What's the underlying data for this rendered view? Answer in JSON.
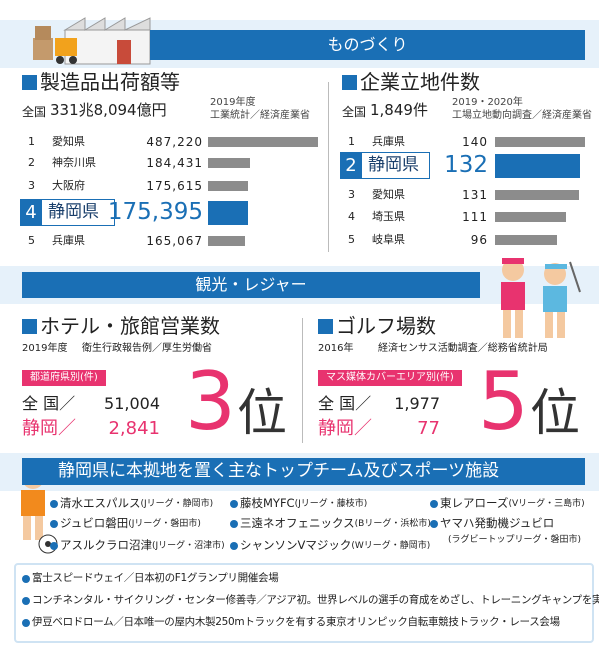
{
  "manufacturing": {
    "banner": "ものづくり",
    "shipments": {
      "title": "製造品出荷額等",
      "national_label": "全国",
      "national_value": "331兆8,094億円",
      "source_year": "2019年度",
      "source": "工業統計／経済産業省",
      "highlight": 3,
      "rows": [
        {
          "rank": "1",
          "pref": "愛知県",
          "value": "487,220"
        },
        {
          "rank": "2",
          "pref": "神奈川県",
          "value": "184,431"
        },
        {
          "rank": "3",
          "pref": "大阪府",
          "value": "175,615"
        },
        {
          "rank": "4",
          "pref": "静岡県",
          "value": "175,395"
        },
        {
          "rank": "5",
          "pref": "兵庫県",
          "value": "165,067"
        }
      ]
    },
    "sites": {
      "title": "企業立地件数",
      "national_label": "全国",
      "national_value": "1,849件",
      "source_year": "2019・2020年",
      "source": "工場立地動向調査／経済産業省",
      "highlight": 1,
      "rows": [
        {
          "rank": "1",
          "pref": "兵庫県",
          "value": "140"
        },
        {
          "rank": "2",
          "pref": "静岡県",
          "value": "132"
        },
        {
          "rank": "3",
          "pref": "愛知県",
          "value": "131"
        },
        {
          "rank": "4",
          "pref": "埼玉県",
          "value": "111"
        },
        {
          "rank": "5",
          "pref": "岐阜県",
          "value": "96"
        }
      ]
    }
  },
  "tourism": {
    "banner": "観光・レジャー",
    "hotels": {
      "title": "ホテル・旅館営業数",
      "source_year": "2019年度",
      "source": "衛生行政報告例／厚生労働省",
      "category": "都道府県別(件)",
      "national_label": "全 国／",
      "national_value": "51,004",
      "pref_label": "静岡／",
      "pref_value": "2,841",
      "rank": "3",
      "rank_unit": "位"
    },
    "golf": {
      "title": "ゴルフ場数",
      "source_year": "2016年",
      "source": "経済センサス活動調査／総務省統計局",
      "category": "マス媒体カバーエリア別(件)",
      "national_label": "全 国／",
      "national_value": "1,977",
      "pref_label": "静岡／",
      "pref_value": "77",
      "rank": "5",
      "rank_unit": "位"
    }
  },
  "sports": {
    "banner": "静岡県に本拠地を置く主なトップチーム及びスポーツ施設",
    "teams": [
      [
        {
          "name": "清水エスパルス",
          "note": "(Jリーグ・静岡市)"
        },
        {
          "name": "ジュビロ磐田",
          "note": "(Jリーグ・磐田市)"
        },
        {
          "name": "アスルクラロ沼津",
          "note": "(Jリーグ・沼津市)"
        }
      ],
      [
        {
          "name": "藤枝MYFC",
          "note": "(Jリーグ・藤枝市)"
        },
        {
          "name": "三遠ネオフェニックス",
          "note": "(Bリーグ・浜松市)"
        },
        {
          "name": "シャンソンVマジック",
          "note": "(Wリーグ・静岡市)"
        }
      ],
      [
        {
          "name": "東レアローズ",
          "note": "(Vリーグ・三島市)"
        },
        {
          "name": "ヤマハ発動機ジュビロ",
          "note": "(ラグビートップリーグ・磐田市)"
        }
      ]
    ],
    "facilities": [
      "富士スピードウェイ／日本初のF1グランプリ開催会場",
      "コンチネンタル・サイクリング・センター修善寺／アジア初。世界レベルの選手の育成をめざし、トレーニングキャンプを実施",
      "伊豆ベロドローム／日本唯一の屋内木製250mトラックを有する東京オリンピック自転車競技トラック・レース会場"
    ]
  }
}
